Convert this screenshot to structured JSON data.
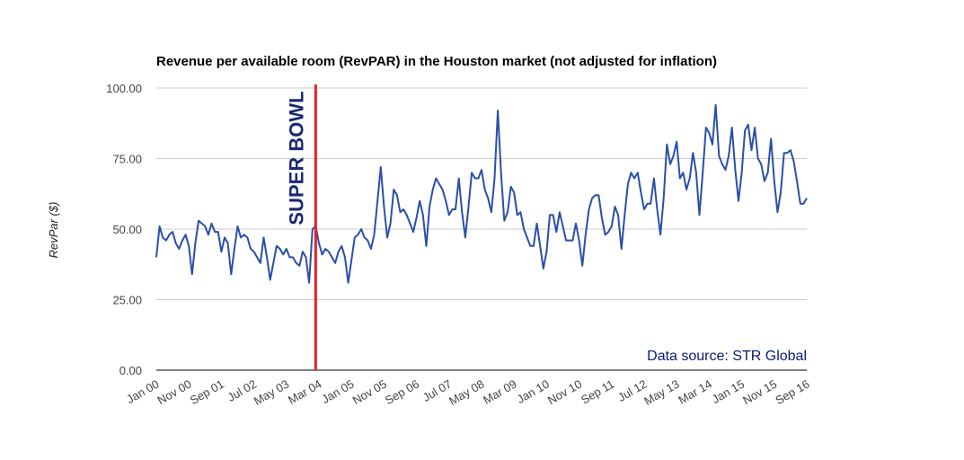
{
  "colors": {
    "series": "#2a4fa8",
    "marker": "#e8202a",
    "marker_text": "#1a2877",
    "source": "#0a1a78",
    "grid": "#cccccc",
    "axis": "#333333"
  },
  "chart_data": {
    "type": "line",
    "title": "Revenue per available room (RevPAR) in the Houston market (not adjusted for inflation)",
    "ylabel": "RevPar ($)",
    "xlabel": "",
    "ylim": [
      0,
      100
    ],
    "y_ticks": [
      "0.00",
      "25.00",
      "50.00",
      "75.00",
      "100.00"
    ],
    "grid": true,
    "legend": "none",
    "x_start": "Jan 00",
    "x_end": "Sep 16",
    "x_ticks": [
      "Jan 00",
      "Nov 00",
      "Sep 01",
      "Jul 02",
      "May 03",
      "Mar 04",
      "Jan 05",
      "Nov 05",
      "Sep 06",
      "Jul 07",
      "May 08",
      "Mar 09",
      "Jan 10",
      "Nov 10",
      "Sep 11",
      "Jul 12",
      "May 13",
      "Mar 14",
      "Jan 15",
      "Nov 15",
      "Sep 16"
    ],
    "annotations": [
      {
        "label": "SUPER BOWL",
        "x": "Feb 04"
      },
      {
        "label": "Data source: STR Global",
        "placement": "bottom-right"
      }
    ],
    "series": [
      {
        "values": [
          40,
          51,
          47,
          46,
          48,
          49,
          45,
          43,
          46,
          48,
          44,
          34,
          45,
          53,
          52,
          51,
          48,
          52,
          49,
          49,
          42,
          47,
          45,
          34,
          43,
          51,
          47,
          48,
          47,
          43,
          42,
          40,
          38,
          47,
          40,
          32,
          38,
          44,
          43,
          41,
          43,
          40,
          40,
          38,
          37,
          42,
          40,
          31,
          50,
          51,
          45,
          41,
          43,
          42,
          40,
          38,
          42,
          44,
          40,
          31,
          39,
          47,
          48,
          50,
          47,
          46,
          43,
          48,
          60,
          72,
          58,
          47,
          52,
          64,
          62,
          56,
          57,
          55,
          52,
          49,
          54,
          60,
          55,
          44,
          58,
          64,
          68,
          66,
          64,
          60,
          55,
          57,
          57,
          68,
          56,
          47,
          58,
          70,
          68,
          68,
          71,
          64,
          61,
          56,
          68,
          92,
          70,
          53,
          56,
          65,
          63,
          55,
          56,
          50,
          47,
          44,
          44,
          52,
          44,
          36,
          42,
          55,
          55,
          49,
          56,
          51,
          46,
          46,
          46,
          52,
          46,
          37,
          48,
          57,
          61,
          62,
          62,
          54,
          48,
          49,
          51,
          58,
          55,
          43,
          55,
          66,
          70,
          68,
          70,
          63,
          57,
          59,
          59,
          68,
          57,
          48,
          61,
          80,
          73,
          76,
          81,
          68,
          70,
          64,
          68,
          77,
          70,
          55,
          70,
          86,
          84,
          80,
          94,
          76,
          73,
          71,
          76,
          86,
          71,
          60,
          70,
          85,
          87,
          78,
          86,
          75,
          73,
          67,
          70,
          82,
          67,
          56,
          63,
          77,
          77,
          78,
          74,
          67,
          59,
          59,
          61
        ]
      }
    ]
  }
}
